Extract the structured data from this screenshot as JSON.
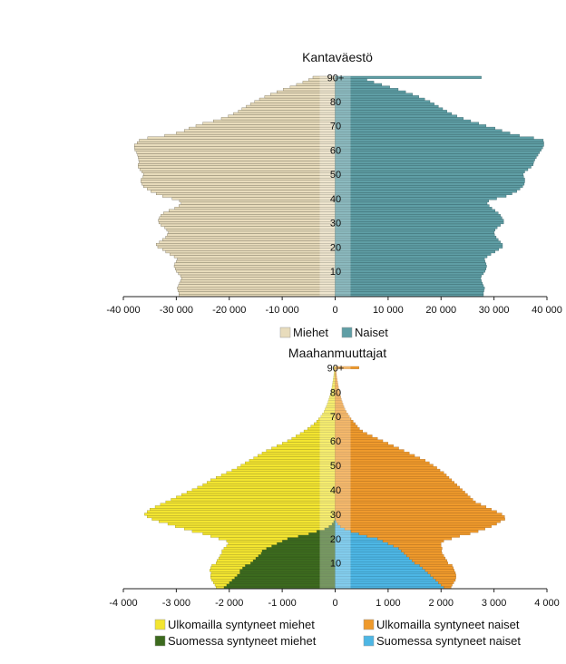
{
  "chart_data": [
    {
      "type": "bar",
      "title": "Kantaväestö",
      "orientation": "horizontal-population-pyramid",
      "xlim": [
        -40000,
        40000
      ],
      "x_ticks": [
        -40000,
        -30000,
        -20000,
        -10000,
        0,
        10000,
        20000,
        30000,
        40000
      ],
      "x_tick_labels": [
        "-40 000",
        "-30 000",
        "-20 000",
        "-10 000",
        "0",
        "10 000",
        "20 000",
        "30 000",
        "40 000"
      ],
      "age_labels": [
        "10",
        "20",
        "30",
        "40",
        "50",
        "60",
        "70",
        "80",
        "90+"
      ],
      "age_label_values": [
        10,
        20,
        30,
        40,
        50,
        60,
        70,
        80,
        90
      ],
      "ages": [
        0,
        1,
        2,
        3,
        4,
        5,
        6,
        7,
        8,
        9,
        10,
        11,
        12,
        13,
        14,
        15,
        16,
        17,
        18,
        19,
        20,
        21,
        22,
        23,
        24,
        25,
        26,
        27,
        28,
        29,
        30,
        31,
        32,
        33,
        34,
        35,
        36,
        37,
        38,
        39,
        40,
        41,
        42,
        43,
        44,
        45,
        46,
        47,
        48,
        49,
        50,
        51,
        52,
        53,
        54,
        55,
        56,
        57,
        58,
        59,
        60,
        61,
        62,
        63,
        64,
        65,
        66,
        67,
        68,
        69,
        70,
        71,
        72,
        73,
        74,
        75,
        76,
        77,
        78,
        79,
        80,
        81,
        82,
        83,
        84,
        85,
        86,
        87,
        88,
        89,
        90
      ],
      "series": [
        {
          "name": "Miehet",
          "color": "#e8dcbc",
          "values": [
            29500,
            29500,
            29700,
            29800,
            29600,
            29400,
            29200,
            29000,
            29200,
            29600,
            30000,
            30200,
            30400,
            30300,
            30000,
            29800,
            30400,
            31200,
            32000,
            32600,
            33500,
            33800,
            33200,
            32600,
            32000,
            31700,
            31500,
            31800,
            32200,
            32900,
            33300,
            33400,
            33200,
            32900,
            32400,
            31400,
            30300,
            29500,
            29100,
            29400,
            30800,
            32600,
            33800,
            34800,
            35500,
            36200,
            36500,
            36700,
            36600,
            36300,
            36200,
            36500,
            36900,
            37200,
            37200,
            37000,
            37100,
            37200,
            37300,
            37500,
            37800,
            37900,
            37900,
            37400,
            37000,
            35400,
            32200,
            30000,
            28500,
            27600,
            26300,
            25000,
            23000,
            21500,
            20200,
            19200,
            18300,
            17600,
            16800,
            16000,
            15200,
            14300,
            13300,
            12200,
            11000,
            9800,
            8500,
            7300,
            6100,
            5000,
            4200
          ]
        },
        {
          "name": "Naiset",
          "color": "#5f9ea5",
          "values": [
            28000,
            28000,
            28100,
            28200,
            28000,
            27800,
            27600,
            27500,
            27600,
            28000,
            28300,
            28500,
            28600,
            28500,
            28300,
            28200,
            28700,
            29400,
            30200,
            30900,
            31600,
            31600,
            31200,
            30800,
            30400,
            30100,
            30000,
            30200,
            30600,
            31200,
            31800,
            31800,
            31500,
            31200,
            30800,
            30200,
            29600,
            29100,
            28700,
            29000,
            30500,
            32300,
            33400,
            34300,
            34900,
            35400,
            35700,
            35800,
            35800,
            35600,
            35500,
            35800,
            36400,
            37000,
            37400,
            37500,
            37700,
            38000,
            38300,
            38600,
            38900,
            39200,
            39400,
            39400,
            39300,
            37500,
            34800,
            33000,
            31500,
            30200,
            28500,
            27100,
            25600,
            24200,
            23000,
            22000,
            21100,
            20300,
            19500,
            18700,
            17900,
            16900,
            15800,
            14600,
            13300,
            11900,
            10300,
            8800,
            7300,
            6000,
            27600
          ]
        }
      ],
      "legend": [
        "Miehet",
        "Naiset"
      ]
    },
    {
      "type": "bar",
      "title": "Maahanmuuttajat",
      "orientation": "horizontal-population-pyramid",
      "xlim": [
        -4000,
        4000
      ],
      "x_ticks": [
        -4000,
        -3000,
        -2000,
        -1000,
        0,
        1000,
        2000,
        3000,
        4000
      ],
      "x_tick_labels": [
        "-4 000",
        "-3 000",
        "-2 000",
        "-1 000",
        "0",
        "1 000",
        "2 000",
        "3 000",
        "4 000"
      ],
      "age_labels": [
        "10",
        "20",
        "30",
        "40",
        "50",
        "60",
        "70",
        "80",
        "90+"
      ],
      "age_label_values": [
        10,
        20,
        30,
        40,
        50,
        60,
        70,
        80,
        90
      ],
      "ages": [
        0,
        1,
        2,
        3,
        4,
        5,
        6,
        7,
        8,
        9,
        10,
        11,
        12,
        13,
        14,
        15,
        16,
        17,
        18,
        19,
        20,
        21,
        22,
        23,
        24,
        25,
        26,
        27,
        28,
        29,
        30,
        31,
        32,
        33,
        34,
        35,
        36,
        37,
        38,
        39,
        40,
        41,
        42,
        43,
        44,
        45,
        46,
        47,
        48,
        49,
        50,
        51,
        52,
        53,
        54,
        55,
        56,
        57,
        58,
        59,
        60,
        61,
        62,
        63,
        64,
        65,
        66,
        67,
        68,
        69,
        70,
        71,
        72,
        73,
        74,
        75,
        76,
        77,
        78,
        79,
        80,
        81,
        82,
        83,
        84,
        85,
        86,
        87,
        88,
        89,
        90
      ],
      "series": [
        {
          "name": "Ulkomailla syntyneet miehet",
          "color": "#f3e530",
          "side": "left",
          "values": [
            150,
            220,
            300,
            380,
            450,
            500,
            540,
            570,
            600,
            630,
            650,
            680,
            700,
            720,
            740,
            760,
            800,
            850,
            920,
            1050,
            1300,
            1650,
            2000,
            2350,
            2650,
            2900,
            3100,
            3300,
            3450,
            3550,
            3600,
            3550,
            3500,
            3400,
            3300,
            3200,
            3100,
            3000,
            2900,
            2800,
            2700,
            2600,
            2500,
            2420,
            2350,
            2250,
            2150,
            2050,
            1950,
            1850,
            1780,
            1700,
            1620,
            1540,
            1460,
            1380,
            1300,
            1200,
            1100,
            1000,
            900,
            820,
            740,
            660,
            590,
            520,
            460,
            400,
            350,
            310,
            270,
            240,
            210,
            190,
            170,
            150,
            135,
            120,
            105,
            92,
            80,
            70,
            60,
            52,
            44,
            37,
            30,
            25,
            20,
            16,
            30
          ]
        },
        {
          "name": "Suomessa syntyneet miehet",
          "color": "#3c6a1e",
          "side": "left",
          "values": [
            2100,
            2050,
            2000,
            1950,
            1900,
            1850,
            1800,
            1800,
            1750,
            1700,
            1600,
            1550,
            1500,
            1450,
            1400,
            1380,
            1300,
            1200,
            1100,
            1000,
            900,
            700,
            500,
            350,
            200,
            120,
            60,
            30,
            10,
            0,
            0,
            0,
            0,
            0,
            0,
            0,
            0,
            0,
            0,
            0,
            0,
            0,
            0,
            0,
            0,
            0,
            0,
            0,
            0,
            0,
            0,
            0,
            0,
            0,
            0,
            0,
            0,
            0,
            0,
            0,
            0,
            0,
            0,
            0,
            0,
            0,
            0,
            0,
            0,
            0,
            0,
            0,
            0,
            0,
            0,
            0,
            0,
            0,
            0,
            0,
            0,
            0,
            0,
            0,
            0,
            0,
            0,
            0,
            0,
            0,
            0
          ]
        },
        {
          "name": "Ulkomailla syntyneet naiset",
          "color": "#ef9a2c",
          "side": "right",
          "values": [
            140,
            210,
            290,
            370,
            430,
            480,
            520,
            550,
            580,
            610,
            630,
            660,
            680,
            700,
            720,
            760,
            820,
            900,
            1000,
            1150,
            1400,
            1750,
            2100,
            2400,
            2650,
            2850,
            3000,
            3100,
            3200,
            3200,
            3150,
            3050,
            2950,
            2850,
            2750,
            2650,
            2600,
            2550,
            2500,
            2450,
            2400,
            2350,
            2300,
            2250,
            2200,
            2150,
            2100,
            2050,
            1980,
            1920,
            1850,
            1780,
            1700,
            1600,
            1500,
            1400,
            1300,
            1200,
            1100,
            1000,
            900,
            800,
            700,
            600,
            520,
            460,
            420,
            380,
            340,
            300,
            270,
            240,
            210,
            185,
            165,
            148,
            132,
            118,
            105,
            93,
            82,
            72,
            62,
            53,
            45,
            38,
            31,
            25,
            20,
            16,
            450
          ]
        },
        {
          "name": "Suomessa syntyneet naiset",
          "color": "#4db6e4",
          "side": "right",
          "values": [
            2050,
            2000,
            1950,
            1900,
            1850,
            1800,
            1750,
            1700,
            1650,
            1600,
            1500,
            1450,
            1400,
            1350,
            1300,
            1250,
            1200,
            1100,
            1000,
            900,
            800,
            600,
            450,
            300,
            180,
            100,
            50,
            20,
            5,
            0,
            0,
            0,
            0,
            0,
            0,
            0,
            0,
            0,
            0,
            0,
            0,
            0,
            0,
            0,
            0,
            0,
            0,
            0,
            0,
            0,
            0,
            0,
            0,
            0,
            0,
            0,
            0,
            0,
            0,
            0,
            0,
            0,
            0,
            0,
            0,
            0,
            0,
            0,
            0,
            0,
            0,
            0,
            0,
            0,
            0,
            0,
            0,
            0,
            0,
            0,
            0,
            0,
            0,
            0,
            0,
            0,
            0,
            0,
            0,
            0,
            0
          ]
        }
      ],
      "legend": [
        "Ulkomailla syntyneet miehet",
        "Ulkomailla syntyneet naiset",
        "Suomessa syntyneet miehet",
        "Suomessa syntyneet naiset"
      ]
    }
  ]
}
